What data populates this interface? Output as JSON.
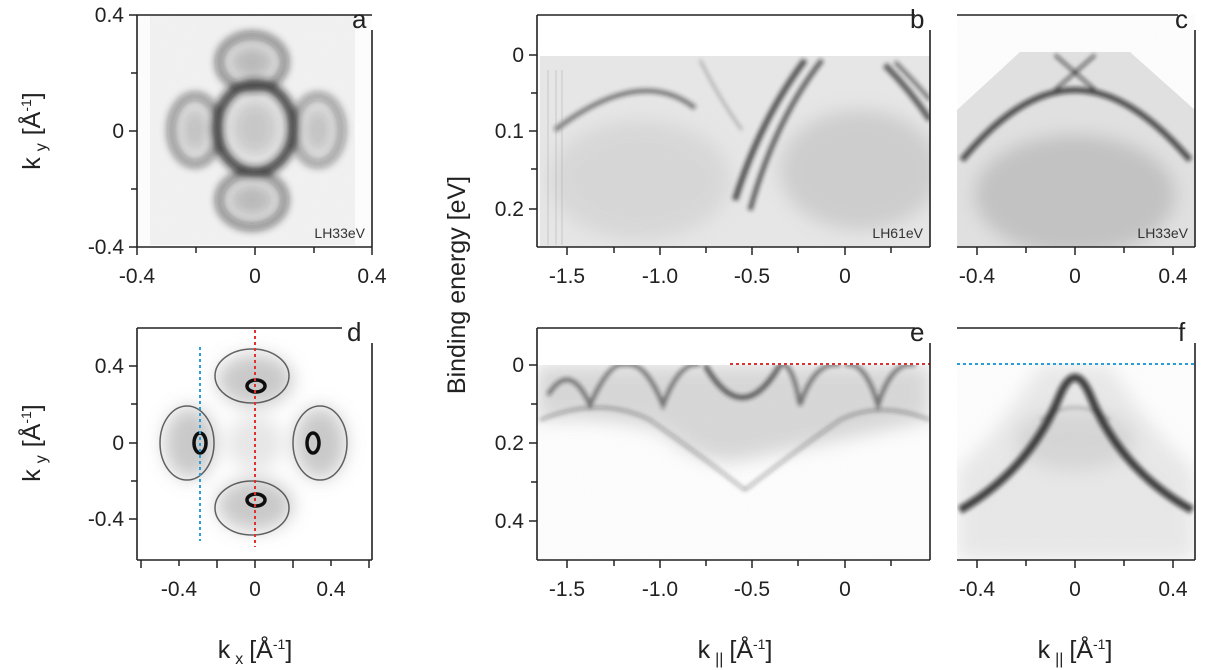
{
  "figure": {
    "panels": {
      "a": {
        "letter": "a",
        "inset": "LH33eV",
        "x_ticks": [
          "-0.4",
          "0",
          "0.4"
        ],
        "y_ticks": [
          "0.4",
          "0",
          "-0.4"
        ],
        "y_title_main": "k",
        "y_title_sub": "y",
        "unit_base": "[Å",
        "unit_exp": "-1",
        "unit_close": "]"
      },
      "b": {
        "letter": "b",
        "inset": "LH61eV",
        "x_ticks": [
          "-1.5",
          "-1.0",
          "-0.5",
          "0"
        ],
        "y_ticks": [
          "0",
          "0.1",
          "0.2"
        ]
      },
      "c": {
        "letter": "c",
        "inset": "LH33eV",
        "x_ticks": [
          "-0.4",
          "0",
          "0.4"
        ]
      },
      "d": {
        "letter": "d",
        "x_ticks": [
          "-0.4",
          "0",
          "0.4"
        ],
        "y_ticks": [
          "0.4",
          "0",
          "-0.4"
        ],
        "y_title_main": "k",
        "y_title_sub": "y",
        "unit_base": "[Å",
        "unit_exp": "-1",
        "unit_close": "]"
      },
      "e": {
        "letter": "e",
        "x_ticks": [
          "-1.5",
          "-1.0",
          "-0.5",
          "0"
        ],
        "y_ticks": [
          "0",
          "0.2",
          "0.4"
        ]
      },
      "f": {
        "letter": "f",
        "x_ticks": [
          "-0.4",
          "0",
          "0.4"
        ]
      }
    },
    "shared_ylabel": "Binding energy [eV]",
    "bottom_labels": {
      "kx_main": "k",
      "kx_sub": "x",
      "kpar_main": "k",
      "kpar_sub": "||",
      "unit_base": "[Å",
      "unit_exp": "-1",
      "unit_close": "]"
    },
    "colors": {
      "red_cut": "#e0302f",
      "blue_cut": "#2a9fd6",
      "intensity": "#111111"
    }
  }
}
